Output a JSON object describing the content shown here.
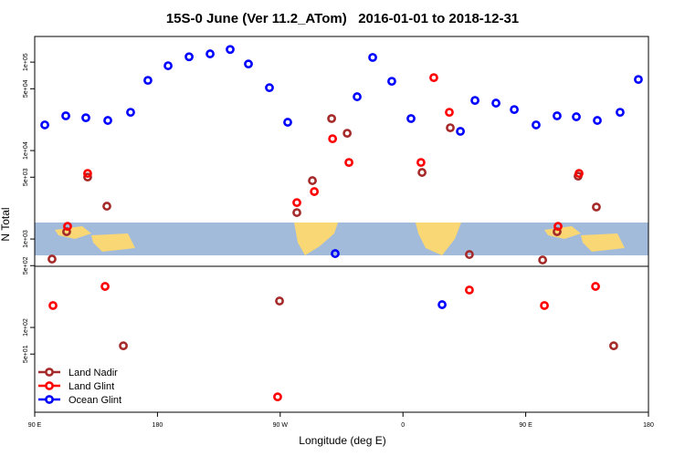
{
  "chart_data": {
    "type": "scatter",
    "title": "15S-0 June (Ver 11.2_ATom)   2016-01-01 to 2018-12-31",
    "x_label": "Longitude (deg E)",
    "y_label": "N Total",
    "log_y": true,
    "legend": "bottom-left",
    "xlim": [
      90,
      540
    ],
    "ylim": [
      11,
      195000
    ],
    "xticks": [
      {
        "value": 90,
        "label": "90 E"
      },
      180,
      {
        "value": 270,
        "label": "90 W"
      },
      {
        "value": 360,
        "label": "0"
      },
      {
        "value": 450,
        "label": "90 E"
      },
      {
        "value": 540,
        "label": "180"
      }
    ],
    "yticks": [
      {
        "value": 50,
        "label": "5e+01"
      },
      {
        "value": 100,
        "label": "1e+02"
      },
      {
        "value": 500,
        "label": "5e+02"
      },
      {
        "value": 1000,
        "label": "1e+03"
      },
      {
        "value": 5000,
        "label": "5e+03"
      },
      {
        "value": 10000,
        "label": "1e+04"
      },
      {
        "value": 50000,
        "label": "5e+04"
      },
      {
        "value": 100000,
        "label": "1e+05"
      }
    ],
    "series": [
      {
        "name": "Land Nadir",
        "color": "#a52a2a",
        "x": [
          102.7,
          113.4,
          128.8,
          142.9,
          155.0,
          269.5,
          282.2,
          293.6,
          307.7,
          319.1,
          374.0,
          394.7,
          408.7,
          462.4,
          473.0,
          488.4,
          501.8,
          514.5
        ],
        "values": [
          593,
          1210,
          5020,
          2350,
          62,
          199,
          1990,
          4570,
          23000,
          15700,
          5660,
          18100,
          668,
          579,
          1210,
          5140,
          2300,
          62
        ]
      },
      {
        "name": "Land Glint",
        "color": "#ff0000",
        "x": [
          114.1,
          128.8,
          103.4,
          141.6,
          282.2,
          295.0,
          308.4,
          320.4,
          268.1,
          373.2,
          382.6,
          394.0,
          408.7,
          463.7,
          473.7,
          489.1,
          501.2
        ],
        "values": [
          1390,
          5520,
          177,
          291,
          2580,
          3440,
          13600,
          7340,
          16.4,
          7340,
          66800,
          27100,
          265,
          177,
          1390,
          5520,
          291
        ]
      },
      {
        "name": "Ocean Glint",
        "color": "#0000ff",
        "x": [
          97.4,
          112.8,
          127.5,
          143.6,
          160.3,
          173.0,
          187.8,
          203.2,
          218.6,
          233.3,
          246.7,
          262.1,
          275.5,
          310.3,
          326.4,
          337.8,
          351.8,
          365.9,
          388.7,
          402.1,
          412.8,
          428.2,
          441.6,
          457.6,
          473.0,
          487.1,
          502.5,
          519.2,
          532.6
        ],
        "values": [
          19500,
          24700,
          23500,
          21900,
          27100,
          62200,
          91000,
          115000,
          124000,
          139000,
          95300,
          51400,
          20900,
          684,
          40600,
          113000,
          60700,
          23000,
          181,
          16500,
          36900,
          34400,
          29100,
          19500,
          24700,
          24100,
          21900,
          27100,
          63700
        ]
      }
    ]
  }
}
